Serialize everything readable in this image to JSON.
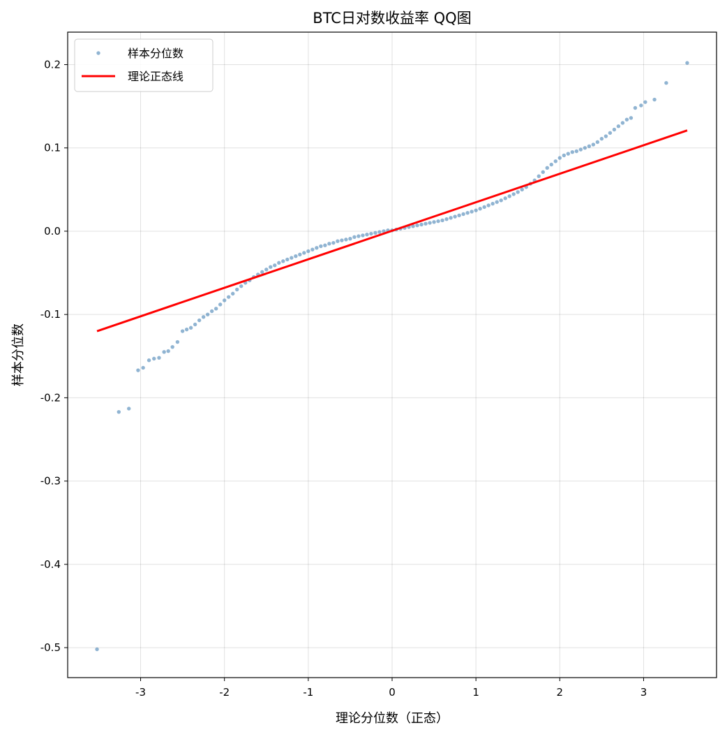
{
  "chart_data": {
    "type": "scatter",
    "title": "BTC日对数收益率 QQ图",
    "xlabel": "理论分位数（正态）",
    "ylabel": "样本分位数",
    "xlim": [
      -3.87,
      3.87
    ],
    "ylim": [
      -0.536,
      0.239
    ],
    "xticks": [
      -3,
      -2,
      -1,
      0,
      1,
      2,
      3
    ],
    "xtick_labels": [
      "-3",
      "-2",
      "-1",
      "0",
      "1",
      "2",
      "3"
    ],
    "yticks": [
      0.2,
      0.1,
      0.0,
      -0.1,
      -0.2,
      -0.3,
      -0.4,
      -0.5
    ],
    "ytick_labels": [
      "0.2",
      "0.1",
      "0.0",
      "-0.1",
      "-0.2",
      "-0.3",
      "-0.4",
      "-0.5"
    ],
    "grid": true,
    "legend_position": "top-left",
    "series": [
      {
        "name": "样本分位数",
        "kind": "scatter",
        "color": "#4682b4",
        "points": [
          [
            -3.52,
            -0.502
          ],
          [
            -3.26,
            -0.217
          ],
          [
            -3.14,
            -0.213
          ],
          [
            -3.03,
            -0.167
          ],
          [
            -2.97,
            -0.164
          ],
          [
            -2.9,
            -0.155
          ],
          [
            -2.84,
            -0.153
          ],
          [
            -2.78,
            -0.152
          ],
          [
            -2.72,
            -0.145
          ],
          [
            -2.67,
            -0.144
          ],
          [
            -2.62,
            -0.139
          ],
          [
            -2.56,
            -0.133
          ],
          [
            -2.5,
            -0.12
          ],
          [
            -2.45,
            -0.118
          ],
          [
            -2.4,
            -0.116
          ],
          [
            -2.35,
            -0.112
          ],
          [
            -2.3,
            -0.107
          ],
          [
            -2.25,
            -0.103
          ],
          [
            -2.2,
            -0.1
          ],
          [
            -2.15,
            -0.096
          ],
          [
            -2.1,
            -0.093
          ],
          [
            -2.05,
            -0.088
          ],
          [
            -2.0,
            -0.083
          ],
          [
            -1.95,
            -0.079
          ],
          [
            -1.9,
            -0.075
          ],
          [
            -1.85,
            -0.07
          ],
          [
            -1.8,
            -0.066
          ],
          [
            -1.75,
            -0.062
          ],
          [
            -1.7,
            -0.059
          ],
          [
            -1.65,
            -0.055
          ],
          [
            -1.6,
            -0.052
          ],
          [
            -1.55,
            -0.049
          ],
          [
            -1.5,
            -0.046
          ],
          [
            -1.45,
            -0.043
          ],
          [
            -1.4,
            -0.041
          ],
          [
            -1.35,
            -0.038
          ],
          [
            -1.3,
            -0.036
          ],
          [
            -1.25,
            -0.034
          ],
          [
            -1.2,
            -0.032
          ],
          [
            -1.15,
            -0.03
          ],
          [
            -1.1,
            -0.028
          ],
          [
            -1.05,
            -0.026
          ],
          [
            -1.0,
            -0.024
          ],
          [
            -0.95,
            -0.022
          ],
          [
            -0.9,
            -0.02
          ],
          [
            -0.85,
            -0.018
          ],
          [
            -0.8,
            -0.017
          ],
          [
            -0.75,
            -0.015
          ],
          [
            -0.7,
            -0.014
          ],
          [
            -0.65,
            -0.012
          ],
          [
            -0.6,
            -0.011
          ],
          [
            -0.55,
            -0.01
          ],
          [
            -0.5,
            -0.009
          ],
          [
            -0.45,
            -0.007
          ],
          [
            -0.4,
            -0.006
          ],
          [
            -0.35,
            -0.005
          ],
          [
            -0.3,
            -0.004
          ],
          [
            -0.25,
            -0.003
          ],
          [
            -0.2,
            -0.002
          ],
          [
            -0.15,
            -0.001
          ],
          [
            -0.1,
            0.0
          ],
          [
            -0.05,
            0.001
          ],
          [
            0.0,
            0.001
          ],
          [
            0.05,
            0.002
          ],
          [
            0.1,
            0.003
          ],
          [
            0.15,
            0.004
          ],
          [
            0.2,
            0.005
          ],
          [
            0.25,
            0.006
          ],
          [
            0.3,
            0.007
          ],
          [
            0.35,
            0.008
          ],
          [
            0.4,
            0.009
          ],
          [
            0.45,
            0.01
          ],
          [
            0.5,
            0.011
          ],
          [
            0.55,
            0.012
          ],
          [
            0.6,
            0.013
          ],
          [
            0.65,
            0.0145
          ],
          [
            0.7,
            0.016
          ],
          [
            0.75,
            0.0175
          ],
          [
            0.8,
            0.019
          ],
          [
            0.85,
            0.0205
          ],
          [
            0.9,
            0.022
          ],
          [
            0.95,
            0.0235
          ],
          [
            1.0,
            0.025
          ],
          [
            1.05,
            0.027
          ],
          [
            1.1,
            0.029
          ],
          [
            1.15,
            0.031
          ],
          [
            1.2,
            0.033
          ],
          [
            1.25,
            0.035
          ],
          [
            1.3,
            0.037
          ],
          [
            1.35,
            0.0395
          ],
          [
            1.4,
            0.042
          ],
          [
            1.45,
            0.0445
          ],
          [
            1.5,
            0.047
          ],
          [
            1.55,
            0.05
          ],
          [
            1.6,
            0.053
          ],
          [
            1.65,
            0.057
          ],
          [
            1.7,
            0.061
          ],
          [
            1.75,
            0.066
          ],
          [
            1.8,
            0.071
          ],
          [
            1.85,
            0.076
          ],
          [
            1.9,
            0.08
          ],
          [
            1.95,
            0.084
          ],
          [
            2.0,
            0.088
          ],
          [
            2.05,
            0.091
          ],
          [
            2.1,
            0.093
          ],
          [
            2.15,
            0.095
          ],
          [
            2.2,
            0.096
          ],
          [
            2.25,
            0.098
          ],
          [
            2.3,
            0.1
          ],
          [
            2.35,
            0.102
          ],
          [
            2.4,
            0.104
          ],
          [
            2.45,
            0.107
          ],
          [
            2.5,
            0.111
          ],
          [
            2.55,
            0.114
          ],
          [
            2.6,
            0.118
          ],
          [
            2.65,
            0.122
          ],
          [
            2.7,
            0.126
          ],
          [
            2.75,
            0.13
          ],
          [
            2.8,
            0.134
          ],
          [
            2.85,
            0.136
          ],
          [
            2.9,
            0.148
          ],
          [
            2.97,
            0.151
          ],
          [
            3.02,
            0.155
          ],
          [
            3.13,
            0.158
          ],
          [
            3.27,
            0.178
          ],
          [
            3.52,
            0.202
          ]
        ]
      },
      {
        "name": "理论正态线",
        "kind": "line",
        "color": "#ff0000",
        "points": [
          [
            -3.52,
            -0.12
          ],
          [
            3.52,
            0.121
          ]
        ]
      }
    ]
  }
}
